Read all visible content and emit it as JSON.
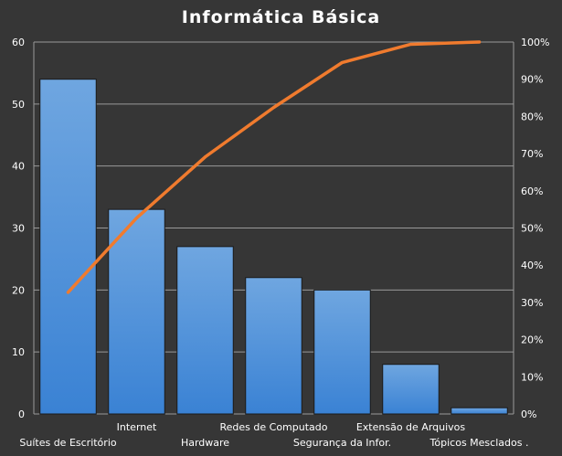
{
  "chart_data": {
    "type": "bar",
    "title": "Informática  Básica",
    "categories": [
      "Suítes de Escritório",
      "Internet",
      "Hardware",
      "Redes de Computado",
      "Segurança da Infor.",
      "Extensão de Arquivos",
      "Tópicos Mesclados ."
    ],
    "series": [
      {
        "values": [
          54,
          33,
          27,
          22,
          20,
          8,
          1
        ]
      },
      {
        "type": "line",
        "axis": "right",
        "values": [
          32.7,
          52.7,
          69.1,
          82.4,
          94.5,
          99.4,
          100
        ]
      }
    ],
    "ylim": [
      0,
      60
    ],
    "yticks": [
      0,
      10,
      20,
      30,
      40,
      50,
      60
    ],
    "y2lim": [
      0,
      100
    ],
    "y2ticks": [
      "0%",
      "10%",
      "20%",
      "30%",
      "40%",
      "50%",
      "60%",
      "70%",
      "80%",
      "90%",
      "100%"
    ],
    "grid": true,
    "legend": "none",
    "colors": {
      "background": "#363636",
      "bar_fill_top": "#6fa6e0",
      "bar_fill_bottom": "#3a82d4",
      "bar_edge": "#1a1a1a",
      "line": "#f07b2e",
      "grid": "#9a9a9a",
      "text": "#ffffff"
    }
  }
}
